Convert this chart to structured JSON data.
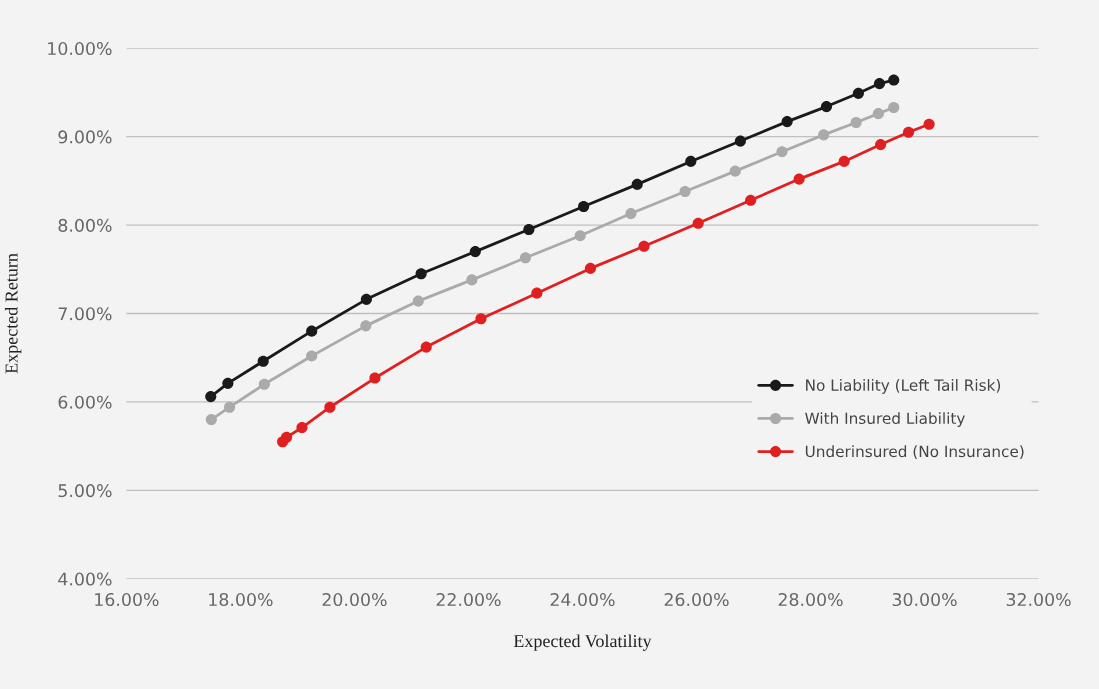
{
  "chart_data": {
    "type": "line",
    "xlabel": "Expected Volatility",
    "ylabel": "Expected Return",
    "xlim": [
      16,
      32
    ],
    "ylim": [
      4,
      10
    ],
    "xticks": [
      {
        "value": 16,
        "label": "16.00%"
      },
      {
        "value": 18,
        "label": "18.00%"
      },
      {
        "value": 20,
        "label": "20.00%"
      },
      {
        "value": 22,
        "label": "22.00%"
      },
      {
        "value": 24,
        "label": "24.00%"
      },
      {
        "value": 26,
        "label": "26.00%"
      },
      {
        "value": 28,
        "label": "28.00%"
      },
      {
        "value": 30,
        "label": "30.00%"
      },
      {
        "value": 32,
        "label": "32.00%"
      }
    ],
    "yticks": [
      {
        "value": 4,
        "label": "4.00%"
      },
      {
        "value": 5,
        "label": "5.00%"
      },
      {
        "value": 6,
        "label": "6.00%"
      },
      {
        "value": 7,
        "label": "7.00%"
      },
      {
        "value": 8,
        "label": "8.00%"
      },
      {
        "value": 9,
        "label": "9.00%"
      },
      {
        "value": 10,
        "label": "10.00%"
      }
    ],
    "grid": "y",
    "legend": "right",
    "marker": "circle",
    "line_style": "solid",
    "series": [
      {
        "name": "No Liability (Left Tail Risk)",
        "color": "#1a1a1a",
        "x": [
          17.48,
          17.78,
          18.4,
          19.25,
          20.21,
          21.17,
          22.12,
          23.06,
          24.02,
          24.96,
          25.9,
          26.77,
          27.59,
          28.28,
          28.84,
          29.21,
          29.46
        ],
        "values": [
          6.06,
          6.21,
          6.46,
          6.8,
          7.16,
          7.45,
          7.7,
          7.95,
          8.21,
          8.46,
          8.72,
          8.95,
          9.17,
          9.34,
          9.49,
          9.6,
          9.64
        ]
      },
      {
        "name": "With Insured Liability",
        "color": "#aaaaaa",
        "x": [
          17.49,
          17.81,
          18.42,
          19.25,
          20.2,
          21.12,
          22.06,
          23.0,
          23.96,
          24.85,
          25.8,
          26.68,
          27.5,
          28.23,
          28.8,
          29.19,
          29.46
        ],
        "values": [
          5.8,
          5.94,
          6.2,
          6.52,
          6.86,
          7.14,
          7.38,
          7.63,
          7.88,
          8.13,
          8.38,
          8.61,
          8.83,
          9.02,
          9.16,
          9.26,
          9.33
        ]
      },
      {
        "name": "Underinsured (No Insurance)",
        "color": "#e02020",
        "x": [
          18.74,
          18.81,
          19.08,
          19.57,
          20.36,
          21.26,
          22.22,
          23.2,
          24.14,
          25.08,
          26.03,
          26.95,
          27.8,
          28.59,
          29.23,
          29.72,
          30.08
        ],
        "values": [
          5.55,
          5.6,
          5.71,
          5.94,
          6.27,
          6.62,
          6.94,
          7.23,
          7.51,
          7.76,
          8.02,
          8.28,
          8.52,
          8.72,
          8.91,
          9.05,
          9.14
        ]
      }
    ]
  }
}
